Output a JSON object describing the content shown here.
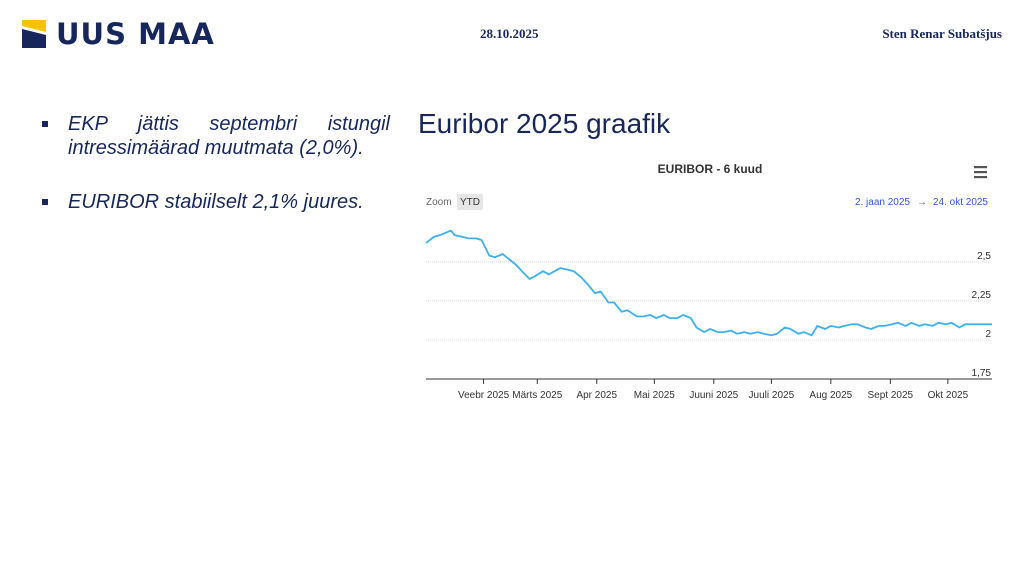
{
  "colors": {
    "navy": "#17275b",
    "logo_yellow": "#f5c400",
    "chart_line": "#3db0ee",
    "range_link": "#3355dd",
    "grid": "#dddddd",
    "axis_text": "#333333"
  },
  "header": {
    "logo_text": "UUS MAA",
    "date": "28.10.2025",
    "author": "Sten Renar Subatšjus"
  },
  "bullets": [
    {
      "text": "EKP jättis septembri istungil intressimäärad muutmata (2,0%)."
    },
    {
      "text": "EURIBOR stabiilselt 2,1% juures."
    }
  ],
  "chart_heading": "Euribor 2025 graafik",
  "chart_ui": {
    "zoom_label": "Zoom",
    "zoom_button": "YTD",
    "range_from": "2. jaan 2025",
    "range_arrow": "→",
    "range_to": "24. okt 2025",
    "menu_icon": "hamburger-menu-icon"
  },
  "chart_data": {
    "type": "line",
    "title": "EURIBOR - 6 kuud",
    "xlabel": "",
    "ylabel": "",
    "ylim": [
      1.75,
      2.8
    ],
    "yticks": [
      1.75,
      2,
      2.25,
      2.5
    ],
    "ytick_labels": [
      "1,75",
      "2",
      "2,25",
      "2,5"
    ],
    "xlim": [
      "2025-01-02",
      "2025-10-24"
    ],
    "xtick_labels": [
      "Veebr 2025",
      "Märts 2025",
      "Apr 2025",
      "Mai 2025",
      "Juuni 2025",
      "Juuli 2025",
      "Aug 2025",
      "Sept 2025",
      "Okt 2025"
    ],
    "xtick_dates": [
      "2025-02-01",
      "2025-03-01",
      "2025-04-01",
      "2025-05-01",
      "2025-06-01",
      "2025-07-01",
      "2025-08-01",
      "2025-09-01",
      "2025-10-01"
    ],
    "grid": true,
    "legend": "none",
    "series": [
      {
        "x": [
          "2025-01-02",
          "2025-01-06",
          "2025-01-09",
          "2025-01-13",
          "2025-01-15",
          "2025-01-17",
          "2025-01-21",
          "2025-01-24",
          "2025-01-28",
          "2025-01-31",
          "2025-02-04",
          "2025-02-07",
          "2025-02-11",
          "2025-02-14",
          "2025-02-18",
          "2025-02-21",
          "2025-02-25",
          "2025-02-28",
          "2025-03-04",
          "2025-03-07",
          "2025-03-10",
          "2025-03-13",
          "2025-03-17",
          "2025-03-20",
          "2025-03-24",
          "2025-03-27",
          "2025-03-31",
          "2025-04-03",
          "2025-04-07",
          "2025-04-10",
          "2025-04-14",
          "2025-04-17",
          "2025-04-22",
          "2025-04-25",
          "2025-04-29",
          "2025-05-02",
          "2025-05-06",
          "2025-05-09",
          "2025-05-13",
          "2025-05-16",
          "2025-05-20",
          "2025-05-23",
          "2025-05-27",
          "2025-05-30",
          "2025-06-03",
          "2025-06-06",
          "2025-06-10",
          "2025-06-13",
          "2025-06-17",
          "2025-06-20",
          "2025-06-24",
          "2025-06-27",
          "2025-07-01",
          "2025-07-04",
          "2025-07-08",
          "2025-07-11",
          "2025-07-15",
          "2025-07-18",
          "2025-07-22",
          "2025-07-25",
          "2025-07-29",
          "2025-08-01",
          "2025-08-05",
          "2025-08-08",
          "2025-08-12",
          "2025-08-15",
          "2025-08-19",
          "2025-08-22",
          "2025-08-26",
          "2025-08-29",
          "2025-09-02",
          "2025-09-05",
          "2025-09-09",
          "2025-09-12",
          "2025-09-16",
          "2025-09-19",
          "2025-09-23",
          "2025-09-26",
          "2025-09-30",
          "2025-10-03",
          "2025-10-07",
          "2025-10-10",
          "2025-10-14",
          "2025-10-17",
          "2025-10-21",
          "2025-10-24"
        ],
        "values": [
          2.62,
          2.66,
          2.67,
          2.69,
          2.7,
          2.67,
          2.66,
          2.65,
          2.65,
          2.64,
          2.54,
          2.53,
          2.55,
          2.52,
          2.48,
          2.44,
          2.39,
          2.41,
          2.44,
          2.42,
          2.44,
          2.46,
          2.45,
          2.44,
          2.4,
          2.36,
          2.3,
          2.31,
          2.24,
          2.24,
          2.18,
          2.19,
          2.15,
          2.15,
          2.16,
          2.14,
          2.16,
          2.14,
          2.14,
          2.16,
          2.14,
          2.08,
          2.05,
          2.07,
          2.05,
          2.05,
          2.06,
          2.04,
          2.05,
          2.04,
          2.05,
          2.04,
          2.03,
          2.04,
          2.08,
          2.07,
          2.04,
          2.05,
          2.03,
          2.09,
          2.07,
          2.09,
          2.08,
          2.09,
          2.1,
          2.1,
          2.08,
          2.07,
          2.09,
          2.09,
          2.1,
          2.11,
          2.09,
          2.11,
          2.09,
          2.1,
          2.09,
          2.11,
          2.1,
          2.11,
          2.08,
          2.1,
          2.1,
          2.1,
          2.1,
          2.1
        ]
      }
    ]
  }
}
